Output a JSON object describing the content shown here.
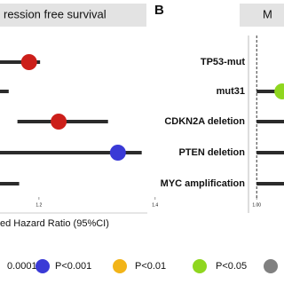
{
  "chart_data": [
    {
      "type": "forest",
      "title": "ression free survival",
      "xlabel": "ed Hazard Ratio (95%CI)",
      "xlim": [
        1.133,
        1.405
      ],
      "xticks": [
        1.2,
        1.4
      ],
      "estimates": [
        1.183,
        null,
        1.234,
        1.336,
        null
      ],
      "lower": [
        1.133,
        1.133,
        1.163,
        1.133,
        1.133
      ],
      "upper": [
        1.202,
        1.148,
        1.319,
        1.377,
        1.166
      ],
      "colors": [
        "#cc1f1a",
        null,
        "#cc1f1a",
        "#3a3ad6",
        null
      ]
    },
    {
      "type": "forest",
      "title": "M",
      "panel_label": "B",
      "categories": [
        "TP53-mut",
        "mut31",
        "CDKN2A deletion",
        "PTEN deletion",
        "MYC amplification"
      ],
      "xlim": [
        0.985,
        1.05
      ],
      "xticks": [
        {
          "value": 1.0,
          "label": "1.00"
        }
      ],
      "reference": 1.0,
      "estimates": [
        null,
        1.047,
        null,
        null,
        null
      ],
      "lower": [
        null,
        1.0,
        1.0,
        1.0,
        1.0
      ],
      "upper": [
        null,
        1.05,
        1.05,
        1.05,
        1.05
      ],
      "colors": [
        null,
        "#8fd61f",
        null,
        null,
        null
      ]
    }
  ],
  "legend": [
    {
      "label": "0.0001"
    },
    {
      "label": "P<0.001",
      "color": "#3a3ad6"
    },
    {
      "label": "P<0.01",
      "color": "#f2b418"
    },
    {
      "label": "P<0.05",
      "color": "#8fd61f"
    },
    {
      "color": "#808080"
    }
  ]
}
